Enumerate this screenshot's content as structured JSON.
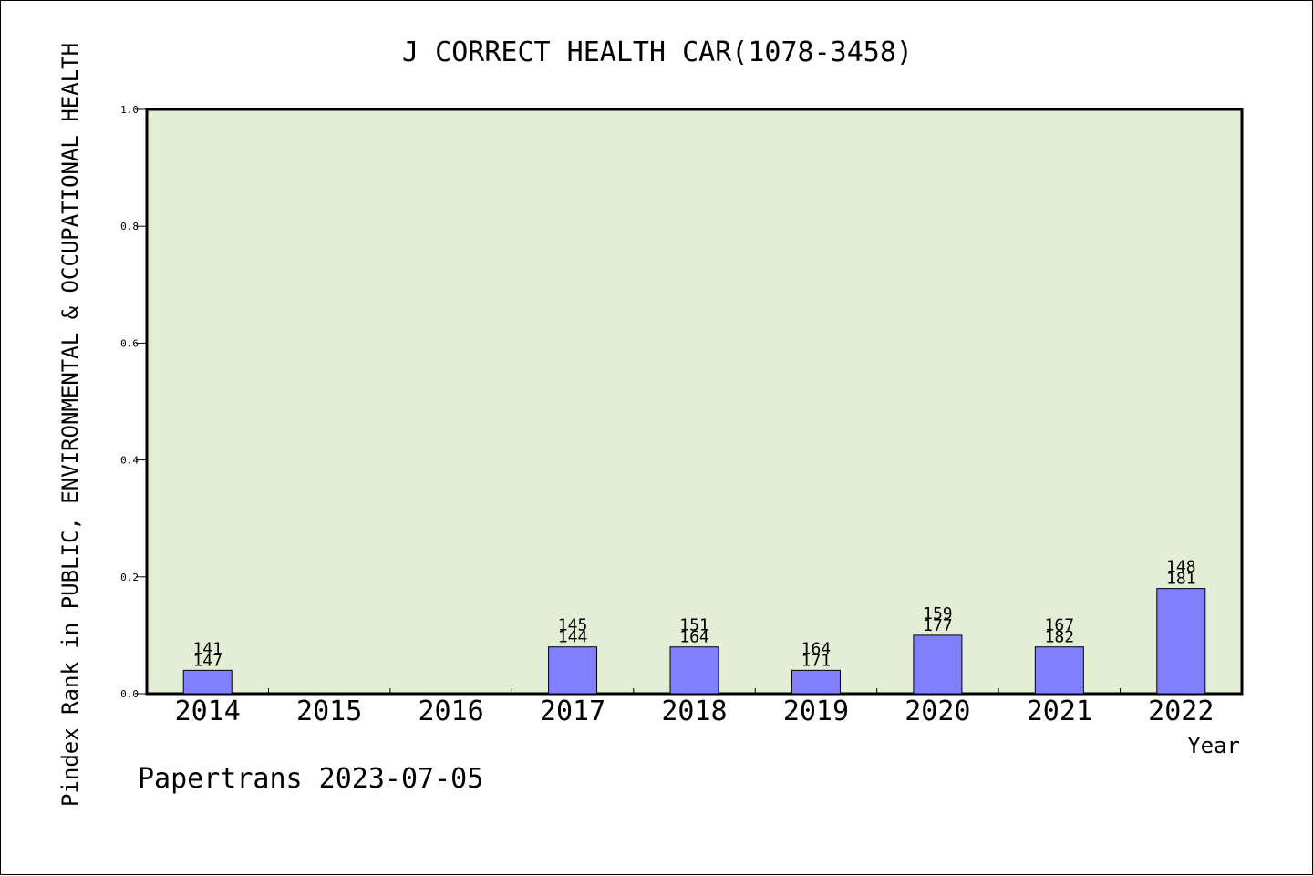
{
  "chart_data": {
    "type": "bar",
    "title": "J CORRECT HEALTH CAR(1078-3458)",
    "ylabel": "Pindex Rank in PUBLIC, ENVIRONMENTAL & OCCUPATIONAL HEALTH",
    "xlabel": "Year",
    "ylim": [
      0.0,
      1.0
    ],
    "yticks": [
      "0.0",
      "0.2",
      "0.4",
      "0.6",
      "0.8",
      "1.0"
    ],
    "categories": [
      "2014",
      "2015",
      "2016",
      "2017",
      "2018",
      "2019",
      "2020",
      "2021",
      "2022"
    ],
    "values": [
      0.04,
      0,
      0,
      0.08,
      0.08,
      0.04,
      0.1,
      0.08,
      0.18
    ],
    "labels_top": [
      "141",
      "",
      "",
      "145",
      "151",
      "164",
      "159",
      "167",
      "148"
    ],
    "labels_bottom": [
      "147",
      "",
      "",
      "144",
      "164",
      "171",
      "177",
      "182",
      "181"
    ],
    "grid": false,
    "colors": {
      "plot_background": "#e2efd6",
      "bar_fill": "#8080ff",
      "bar_stroke": "#000000"
    }
  },
  "footer": {
    "text": "Papertrans 2023-07-05"
  }
}
